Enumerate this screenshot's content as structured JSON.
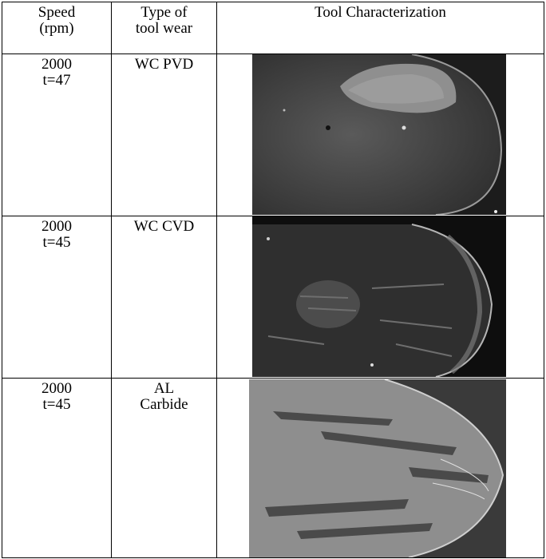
{
  "table": {
    "header": [
      [
        "Speed",
        "(rpm)"
      ],
      [
        "Type of",
        "tool wear"
      ],
      [
        "Tool Characterization"
      ]
    ],
    "rows": [
      [
        [
          "2000",
          "t=47"
        ],
        [
          "WC PVD"
        ]
      ],
      [
        [
          "2000",
          "t=45"
        ],
        [
          "WC CVD"
        ]
      ],
      [
        [
          "2000",
          "t=45"
        ],
        [
          "AL",
          "Carbide"
        ]
      ]
    ]
  }
}
